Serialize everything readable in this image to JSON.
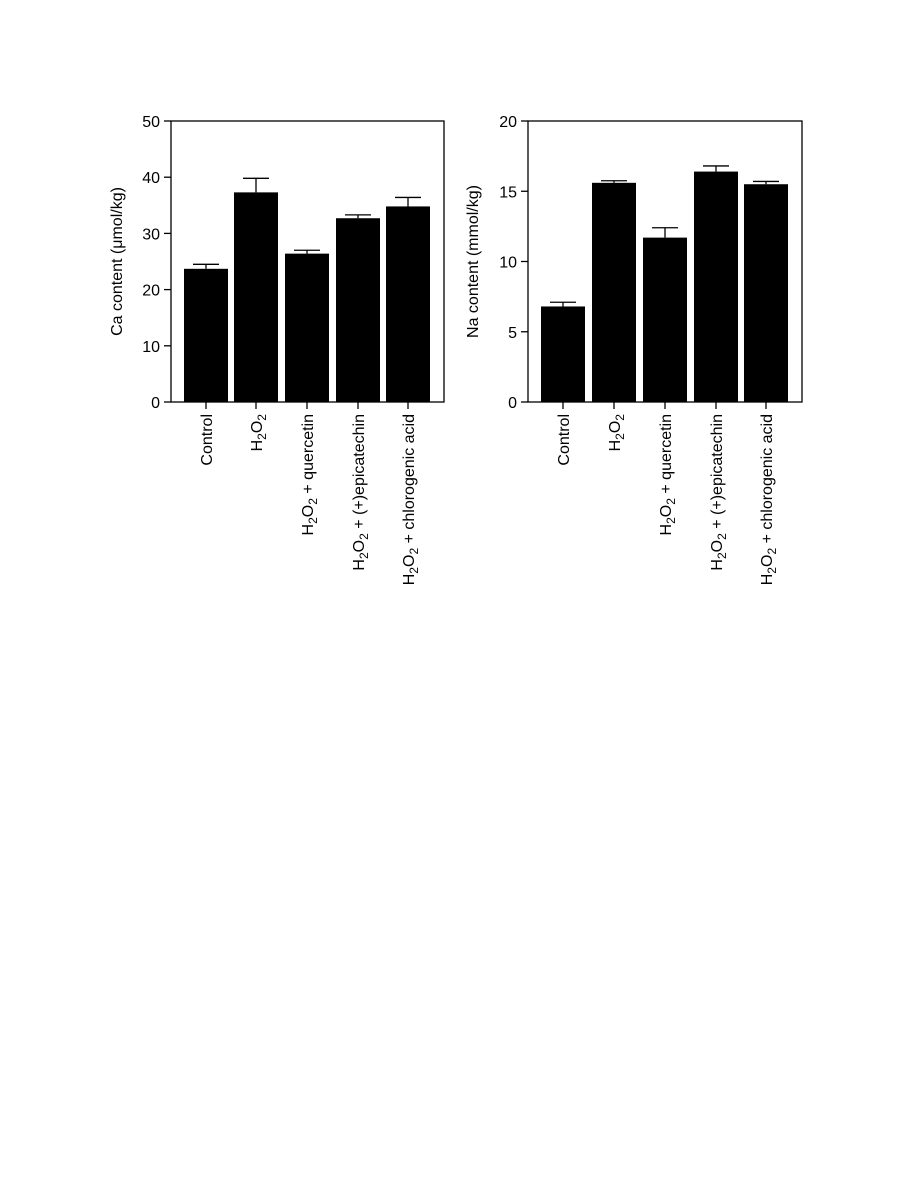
{
  "colors": {
    "bar": "#000000",
    "axis": "#000000",
    "background": "#ffffff"
  },
  "chart_data": [
    {
      "type": "bar",
      "ylabel": "Ca content (μmol/kg)",
      "ylim": [
        0,
        50
      ],
      "yticks": [
        0,
        10,
        20,
        30,
        40,
        50
      ],
      "grid": false,
      "error_bars": true,
      "categories": [
        {
          "base": "Control",
          "label": "Control"
        },
        {
          "base": "H2O2",
          "label": "H2O2"
        },
        {
          "base": "H2O2",
          "suffix": " + quercetin",
          "label": "H2O2 + quercetin"
        },
        {
          "base": "H2O2",
          "suffix": " + (+)epicatechin",
          "label": "H2O2 + (+)epicatechin"
        },
        {
          "base": "H2O2",
          "suffix": " + chlorogenic acid",
          "label": "H2O2 + chlorogenic acid"
        }
      ],
      "values": [
        23.7,
        37.3,
        26.4,
        32.7,
        34.8
      ],
      "errors": [
        0.8,
        2.5,
        0.6,
        0.6,
        1.6
      ]
    },
    {
      "type": "bar",
      "ylabel": "Na content (mmol/kg)",
      "ylim": [
        0,
        20
      ],
      "yticks": [
        0,
        5,
        10,
        15,
        20
      ],
      "grid": false,
      "error_bars": true,
      "categories": [
        {
          "base": "Control",
          "label": "Control"
        },
        {
          "base": "H2O2",
          "label": "H2O2"
        },
        {
          "base": "H2O2",
          "suffix": " + quercetin",
          "label": "H2O2 + quercetin"
        },
        {
          "base": "H2O2",
          "suffix": " + (+)epicatechin",
          "label": "H2O2 + (+)epicatechin"
        },
        {
          "base": "H2O2",
          "suffix": " + chlorogenic acid",
          "label": "H2O2 + chlorogenic acid"
        }
      ],
      "values": [
        6.8,
        15.6,
        11.7,
        16.4,
        15.5
      ],
      "errors": [
        0.3,
        0.15,
        0.7,
        0.4,
        0.2
      ]
    }
  ]
}
